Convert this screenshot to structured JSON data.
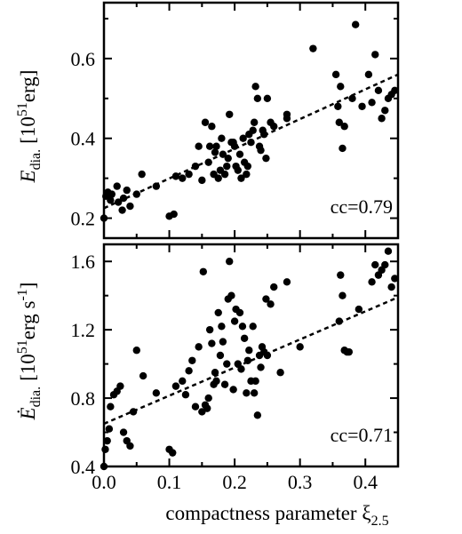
{
  "chart_data": [
    {
      "type": "scatter",
      "panel": "top",
      "ylabel": {
        "symbol": "E",
        "sub": "dia.",
        "unit_pre": "[10",
        "unit_exp": "51",
        "unit_post": "erg]"
      },
      "xlim": [
        0,
        0.45
      ],
      "ylim": [
        0.15,
        0.74
      ],
      "yticks": [
        0.2,
        0.4,
        0.6
      ],
      "ytick_labels": [
        "0.2",
        "0.4",
        "0.6"
      ],
      "annotation": "cc=0.79",
      "fit": {
        "x": [
          0.0,
          0.45
        ],
        "y": [
          0.225,
          0.56
        ]
      },
      "series": [
        {
          "x": [
            0.0,
            0.003,
            0.006,
            0.01,
            0.012,
            0.02,
            0.022,
            0.028,
            0.03,
            0.035,
            0.04,
            0.05,
            0.058,
            0.08,
            0.1,
            0.107,
            0.11,
            0.12,
            0.13,
            0.14,
            0.145,
            0.15,
            0.155,
            0.16,
            0.162,
            0.165,
            0.168,
            0.17,
            0.172,
            0.175,
            0.178,
            0.18,
            0.182,
            0.185,
            0.188,
            0.19,
            0.192,
            0.195,
            0.198,
            0.2,
            0.202,
            0.205,
            0.208,
            0.21,
            0.213,
            0.215,
            0.218,
            0.22,
            0.222,
            0.225,
            0.228,
            0.23,
            0.232,
            0.235,
            0.238,
            0.24,
            0.243,
            0.245,
            0.248,
            0.25,
            0.255,
            0.26,
            0.28,
            0.28,
            0.32,
            0.355,
            0.358,
            0.36,
            0.362,
            0.365,
            0.368,
            0.38,
            0.385,
            0.395,
            0.405,
            0.41,
            0.415,
            0.42,
            0.425,
            0.43,
            0.435,
            0.44,
            0.445
          ],
          "y": [
            0.2,
            0.255,
            0.265,
            0.245,
            0.26,
            0.28,
            0.24,
            0.22,
            0.25,
            0.27,
            0.23,
            0.26,
            0.31,
            0.28,
            0.205,
            0.21,
            0.305,
            0.3,
            0.31,
            0.33,
            0.38,
            0.295,
            0.44,
            0.34,
            0.38,
            0.43,
            0.31,
            0.365,
            0.38,
            0.3,
            0.32,
            0.4,
            0.36,
            0.31,
            0.33,
            0.35,
            0.46,
            0.39,
            0.39,
            0.38,
            0.33,
            0.32,
            0.36,
            0.3,
            0.4,
            0.34,
            0.31,
            0.33,
            0.41,
            0.39,
            0.42,
            0.44,
            0.53,
            0.5,
            0.38,
            0.37,
            0.42,
            0.41,
            0.35,
            0.5,
            0.44,
            0.43,
            0.46,
            0.45,
            0.625,
            0.56,
            0.48,
            0.44,
            0.53,
            0.375,
            0.43,
            0.5,
            0.685,
            0.48,
            0.56,
            0.49,
            0.61,
            0.52,
            0.45,
            0.47,
            0.5,
            0.51,
            0.52
          ]
        }
      ]
    },
    {
      "type": "scatter",
      "panel": "bottom",
      "xlabel": {
        "text": "compactness parameter ξ",
        "sub": "2.5"
      },
      "ylabel": {
        "symbol": "Ė",
        "sub": "dia.",
        "unit_pre": "[10",
        "unit_exp": "51",
        "unit_post": "erg s",
        "unit_exp2": "-1",
        "unit_close": "]"
      },
      "xlim": [
        0,
        0.45
      ],
      "ylim": [
        0.4,
        1.7
      ],
      "xticks": [
        0.0,
        0.1,
        0.2,
        0.3,
        0.4
      ],
      "xtick_labels": [
        "0.0",
        "0.1",
        "0.2",
        "0.3",
        "0.4"
      ],
      "yticks": [
        0.4,
        0.8,
        1.2,
        1.6
      ],
      "ytick_labels": [
        "0.4",
        "0.8",
        "1.2",
        "1.6"
      ],
      "annotation": "cc=0.71",
      "fit": {
        "x": [
          0.0,
          0.45
        ],
        "y": [
          0.65,
          1.39
        ]
      },
      "series": [
        {
          "x": [
            0.0,
            0.002,
            0.005,
            0.008,
            0.01,
            0.015,
            0.02,
            0.025,
            0.03,
            0.035,
            0.04,
            0.045,
            0.05,
            0.06,
            0.08,
            0.1,
            0.105,
            0.11,
            0.12,
            0.125,
            0.13,
            0.135,
            0.14,
            0.145,
            0.15,
            0.152,
            0.155,
            0.158,
            0.16,
            0.162,
            0.165,
            0.168,
            0.17,
            0.172,
            0.175,
            0.178,
            0.18,
            0.182,
            0.185,
            0.188,
            0.19,
            0.192,
            0.195,
            0.198,
            0.2,
            0.202,
            0.205,
            0.208,
            0.21,
            0.212,
            0.215,
            0.218,
            0.22,
            0.222,
            0.225,
            0.228,
            0.23,
            0.232,
            0.235,
            0.238,
            0.24,
            0.242,
            0.245,
            0.248,
            0.25,
            0.255,
            0.26,
            0.27,
            0.28,
            0.3,
            0.36,
            0.362,
            0.365,
            0.368,
            0.372,
            0.375,
            0.39,
            0.41,
            0.415,
            0.42,
            0.425,
            0.43,
            0.435,
            0.44,
            0.445
          ],
          "y": [
            0.4,
            0.5,
            0.55,
            0.62,
            0.75,
            0.82,
            0.84,
            0.87,
            0.6,
            0.55,
            0.52,
            0.72,
            1.08,
            0.93,
            0.83,
            0.5,
            0.48,
            0.87,
            0.9,
            0.82,
            0.96,
            1.02,
            0.75,
            1.1,
            0.72,
            1.54,
            0.76,
            0.74,
            0.8,
            1.2,
            1.12,
            0.88,
            0.95,
            0.9,
            1.3,
            1.05,
            1.22,
            1.13,
            0.88,
            1.0,
            1.38,
            1.6,
            1.4,
            0.85,
            1.25,
            1.32,
            1.0,
            1.3,
            0.97,
            1.22,
            1.15,
            0.83,
            1.02,
            1.08,
            0.9,
            1.22,
            0.83,
            0.9,
            0.7,
            1.05,
            0.98,
            1.1,
            1.07,
            1.38,
            1.05,
            1.35,
            1.45,
            0.95,
            1.48,
            1.1,
            1.25,
            1.52,
            1.4,
            1.08,
            1.07,
            1.07,
            1.32,
            1.48,
            1.58,
            1.52,
            1.55,
            1.58,
            1.66,
            1.45,
            1.5
          ]
        }
      ]
    }
  ]
}
